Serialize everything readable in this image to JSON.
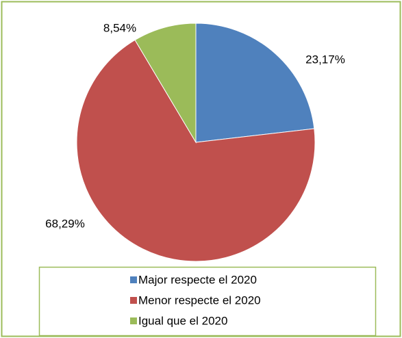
{
  "chart_data": {
    "type": "pie",
    "categories": [
      "Major respecte el 2020",
      "Menor respecte el 2020",
      "Igual que el 2020"
    ],
    "values": [
      23.17,
      68.29,
      8.54
    ],
    "value_labels": [
      "23,17%",
      "68,29%",
      "8,54%"
    ],
    "colors": [
      "#4f81bd",
      "#c0504d",
      "#9bbb59"
    ],
    "legend": "bottom"
  }
}
